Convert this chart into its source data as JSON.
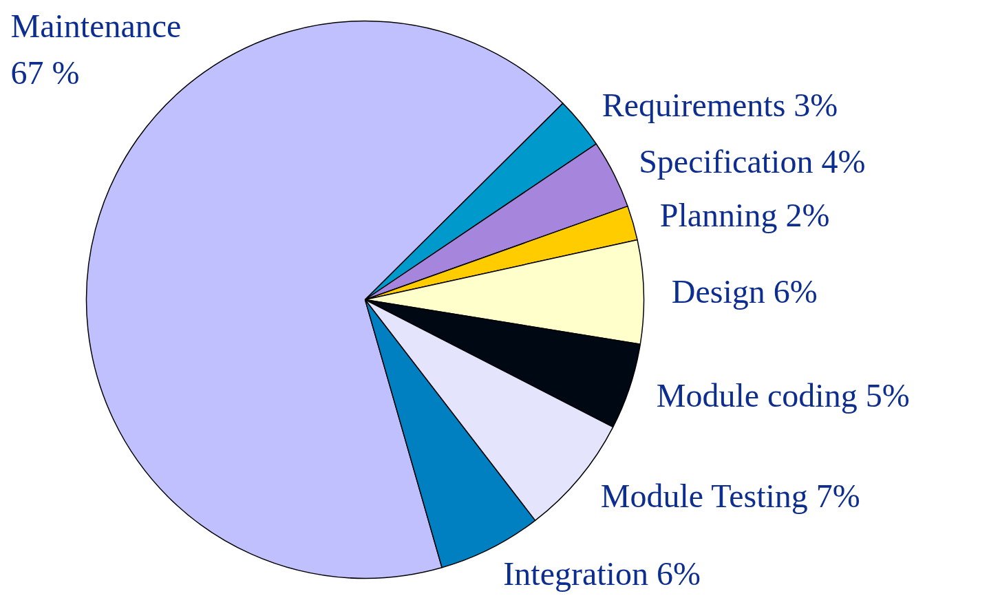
{
  "chart_data": {
    "type": "pie",
    "categories": [
      "Maintenance",
      "Requirements",
      "Specification",
      "Planning",
      "Design",
      "Module coding",
      "Module Testing",
      "Integration"
    ],
    "values": [
      67,
      3,
      4,
      2,
      6,
      5,
      7,
      6
    ],
    "value_labels": [
      "67 %",
      "3%",
      "4%",
      "2%",
      "6%",
      "5%",
      "7%",
      "6%"
    ],
    "colors": [
      "#c0c0ff",
      "#0099cc",
      "#a686dd",
      "#ffcc00",
      "#ffffcc",
      "#000814",
      "#e4e4fc",
      "#0080c0"
    ]
  }
}
